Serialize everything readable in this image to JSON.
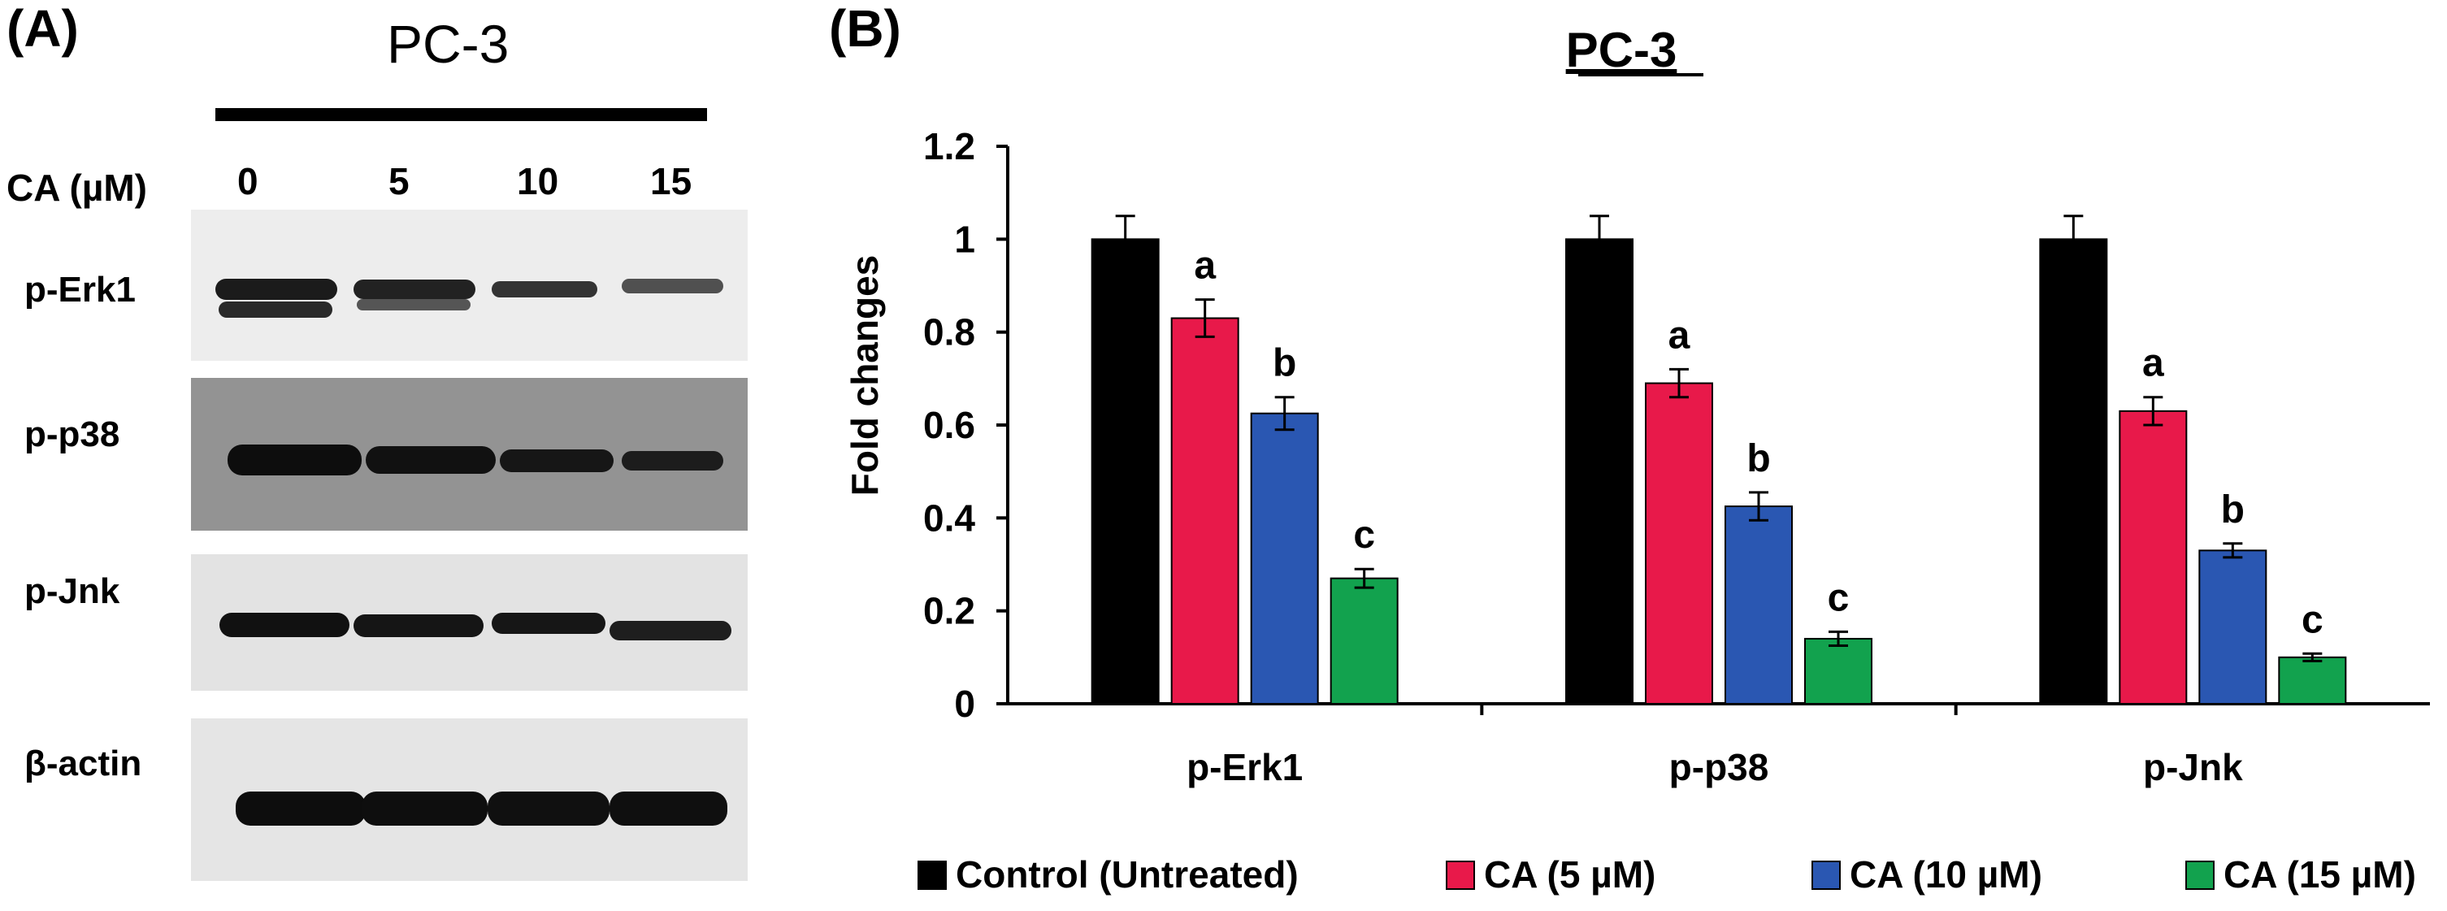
{
  "panel_a": {
    "letter": "(A)",
    "cell_line": "PC-3",
    "concentration_label": "CA (µM)",
    "lanes": [
      "0",
      "5",
      "10",
      "15"
    ],
    "blots": [
      {
        "label": "p-Erk1"
      },
      {
        "label": "p-p38"
      },
      {
        "label": "p-Jnk"
      },
      {
        "label": "β-actin"
      }
    ]
  },
  "panel_b": {
    "letter": "(B)"
  },
  "chart_data": {
    "type": "bar",
    "title": "PC-3",
    "xlabel": "",
    "ylabel": "Fold changes",
    "ylim": [
      0,
      1.2
    ],
    "yticks": [
      "0",
      "0.2",
      "0.4",
      "0.6",
      "0.8",
      "1",
      "1.2"
    ],
    "categories": [
      "p-Erk1",
      "p-p38",
      "p-Jnk"
    ],
    "series": [
      {
        "name": "Control (Untreated)",
        "color": "#000000",
        "values": [
          1.0,
          1.0,
          1.0
        ],
        "errors": [
          0.05,
          0.05,
          0.05
        ],
        "labels": [
          "",
          "",
          ""
        ]
      },
      {
        "name": "CA (5 µM)",
        "color": "#e8194a",
        "values": [
          0.83,
          0.69,
          0.63
        ],
        "errors": [
          0.04,
          0.03,
          0.03
        ],
        "labels": [
          "a",
          "a",
          "a"
        ]
      },
      {
        "name": "CA (10 µM)",
        "color": "#2a57b2",
        "values": [
          0.625,
          0.425,
          0.33
        ],
        "errors": [
          0.035,
          0.03,
          0.015
        ],
        "labels": [
          "b",
          "b",
          "b"
        ]
      },
      {
        "name": "CA (15 µM)",
        "color": "#12a24e",
        "values": [
          0.27,
          0.14,
          0.1
        ],
        "errors": [
          0.02,
          0.015,
          0.008
        ],
        "labels": [
          "c",
          "c",
          "c"
        ]
      }
    ],
    "legend_position": "bottom"
  }
}
